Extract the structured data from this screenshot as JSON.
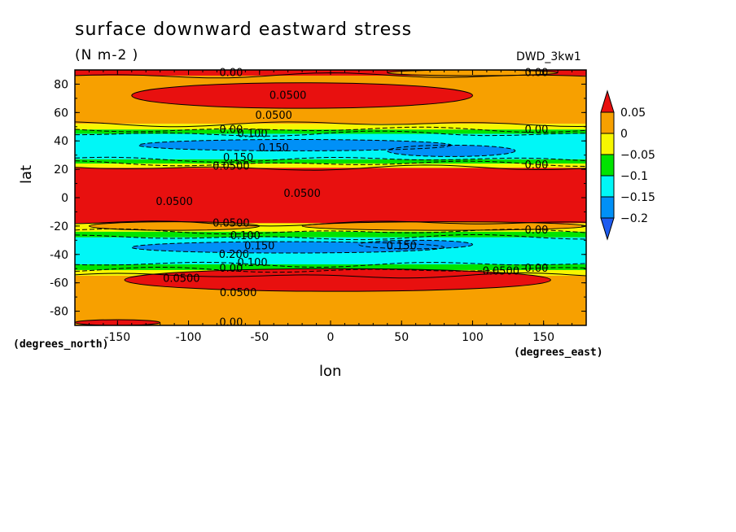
{
  "chart_data": {
    "type": "heatmap",
    "title": "surface downward eastward stress",
    "units": "(N m-2  )",
    "model": "DWD_3kw1",
    "xlabel": "lon",
    "ylabel": "lat",
    "x_units": "(degrees_east)",
    "y_units": "(degrees_north)",
    "xlim": [
      -180,
      180
    ],
    "ylim": [
      -90,
      90
    ],
    "x_ticks": [
      -150,
      -100,
      -50,
      0,
      50,
      100,
      150
    ],
    "y_ticks": [
      80,
      60,
      40,
      20,
      0,
      -20,
      -40,
      -60,
      -80
    ],
    "x_tick_labels": [
      "-150",
      "-100",
      "-50",
      "0",
      "50",
      "100",
      "150"
    ],
    "y_tick_labels": [
      "80",
      "60",
      "40",
      "20",
      "0",
      "-20",
      "-40",
      "-60",
      "-80"
    ],
    "colorbar": {
      "levels": [
        0.05,
        0,
        -0.05,
        -0.1,
        -0.15,
        -0.2
      ],
      "labels": [
        "0.05",
        "0",
        "−0.05",
        "−0.1",
        "−0.15",
        "−0.2"
      ],
      "colors": [
        "#e8100f",
        "#f7a000",
        "#f7f700",
        "#00e400",
        "#00f7f7",
        "#0090f7",
        "#1e5cf0"
      ]
    },
    "bands": [
      {
        "lat_top": 90,
        "lat_bottom": 86,
        "value": "0.05-0.1"
      },
      {
        "lat_top": 86,
        "lat_bottom": 52,
        "value": "0-0.05"
      },
      {
        "lat_top": 52,
        "lat_bottom": 48,
        "value": "-0.05-0"
      },
      {
        "lat_top": 48,
        "lat_bottom": 45,
        "value": "-0.1--0.05"
      },
      {
        "lat_top": 45,
        "lat_bottom": 27,
        "value": "-0.15--0.1"
      },
      {
        "lat_top": 27,
        "lat_bottom": 24,
        "value": "-0.1--0.05"
      },
      {
        "lat_top": 24,
        "lat_bottom": 21,
        "value": "-0.05-0"
      },
      {
        "lat_top": 21,
        "lat_bottom": -18,
        "value": "0.05-0.1"
      },
      {
        "lat_top": -18,
        "lat_bottom": -24,
        "value": "-0.05-0"
      },
      {
        "lat_top": -24,
        "lat_bottom": -28,
        "value": "-0.1--0.05"
      },
      {
        "lat_top": -28,
        "lat_bottom": -47,
        "value": "-0.15--0.1"
      },
      {
        "lat_top": -47,
        "lat_bottom": -51,
        "value": "-0.1--0.05"
      },
      {
        "lat_top": -51,
        "lat_bottom": -55,
        "value": "-0.05-0"
      },
      {
        "lat_top": -55,
        "lat_bottom": -90,
        "value": "0-0.05"
      }
    ],
    "blobs": [
      {
        "lon": -20,
        "lat": 72,
        "rlon": 120,
        "rlat": 9,
        "value": "0.05-0.1"
      },
      {
        "lon": -25,
        "lat": 37,
        "rlon": 110,
        "rlat": 4,
        "value": "-0.2--0.15"
      },
      {
        "lon": 85,
        "lat": 33,
        "rlon": 45,
        "rlat": 4,
        "value": "-0.2--0.15"
      },
      {
        "lon": -30,
        "lat": -35,
        "rlon": 110,
        "rlat": 4,
        "value": "-0.2--0.15"
      },
      {
        "lon": 60,
        "lat": -33,
        "rlon": 40,
        "rlat": 3,
        "value": "-0.2--0.15"
      },
      {
        "lon": 5,
        "lat": -58,
        "rlon": 150,
        "rlat": 8,
        "value": "0.05-0.1"
      },
      {
        "lon": 80,
        "lat": -20,
        "rlon": 100,
        "rlat": 3,
        "value": "0-0.05"
      },
      {
        "lon": -110,
        "lat": -20,
        "rlon": 60,
        "rlat": 3,
        "value": "0-0.05"
      },
      {
        "lon": -150,
        "lat": -88,
        "rlon": 30,
        "rlat": 2,
        "value": "0.05-0.1"
      },
      {
        "lon": 100,
        "lat": 88,
        "rlon": 60,
        "rlat": 2,
        "value": "0-0.05"
      }
    ],
    "contour_labels": [
      {
        "text": "0.00",
        "lon": -70,
        "lat": 88
      },
      {
        "text": "0.00",
        "lon": 145,
        "lat": 88
      },
      {
        "text": "0.0500",
        "lon": -30,
        "lat": 72
      },
      {
        "text": "0.0500",
        "lon": -40,
        "lat": 58
      },
      {
        "text": "0.00",
        "lon": -70,
        "lat": 48
      },
      {
        "text": "0.00",
        "lon": 145,
        "lat": 48
      },
      {
        "text": "0.100",
        "lon": -55,
        "lat": 45
      },
      {
        "text": "0.150",
        "lon": -40,
        "lat": 35
      },
      {
        "text": "0.150",
        "lon": -65,
        "lat": 28
      },
      {
        "text": "0.0500",
        "lon": -70,
        "lat": 22
      },
      {
        "text": "0.00",
        "lon": 145,
        "lat": 23
      },
      {
        "text": "0.0500",
        "lon": -20,
        "lat": 3
      },
      {
        "text": "0.0500",
        "lon": -110,
        "lat": -3
      },
      {
        "text": "0.0500",
        "lon": -70,
        "lat": -18
      },
      {
        "text": "0.00",
        "lon": 145,
        "lat": -23
      },
      {
        "text": "0.100",
        "lon": -60,
        "lat": -27
      },
      {
        "text": "0.150",
        "lon": -50,
        "lat": -34
      },
      {
        "text": "0.200",
        "lon": -68,
        "lat": -40
      },
      {
        "text": "0.150",
        "lon": 50,
        "lat": -34
      },
      {
        "text": "0.100",
        "lon": -55,
        "lat": -46
      },
      {
        "text": "0.00",
        "lon": -70,
        "lat": -50
      },
      {
        "text": "0.00",
        "lon": 145,
        "lat": -50
      },
      {
        "text": "0.0500",
        "lon": -105,
        "lat": -57
      },
      {
        "text": "0.0500",
        "lon": 120,
        "lat": -52
      },
      {
        "text": "0.0500",
        "lon": -65,
        "lat": -67
      },
      {
        "text": "0.00",
        "lon": -70,
        "lat": -88
      }
    ]
  }
}
